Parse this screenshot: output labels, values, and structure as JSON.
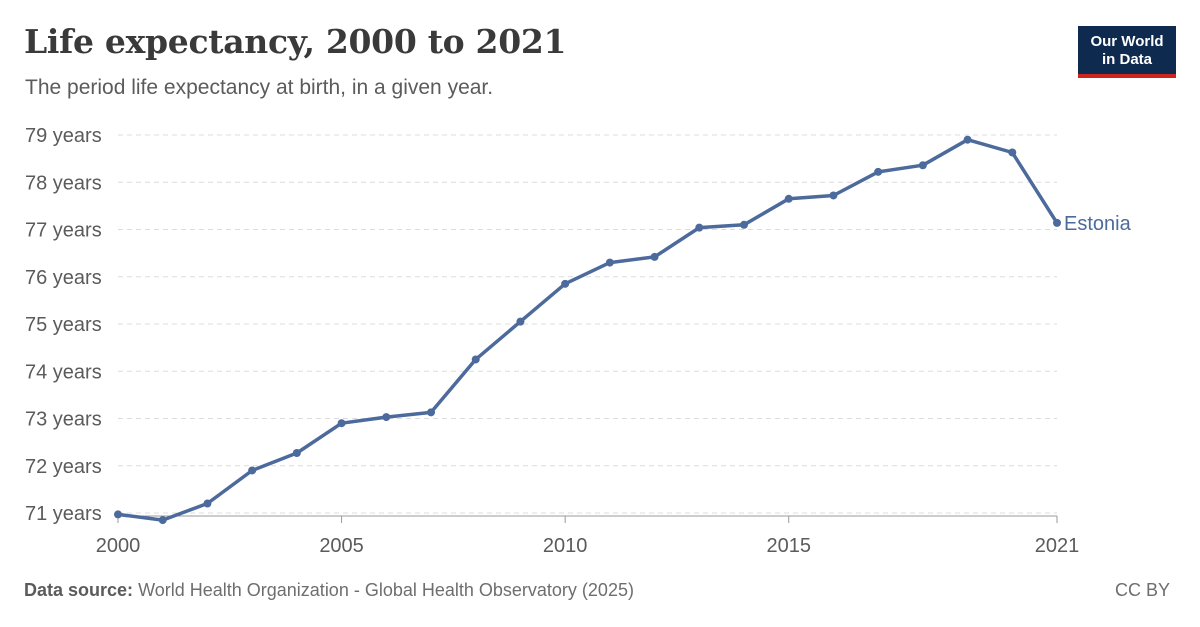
{
  "header": {
    "title": "Life expectancy, 2000 to 2021",
    "subtitle": "The period life expectancy at birth, in a given year."
  },
  "logo": {
    "line1": "Our World",
    "line2": "in Data"
  },
  "footer": {
    "source_label": "Data source:",
    "source_text": "World Health Organization - Global Health Observatory (2025)",
    "license": "CC BY"
  },
  "chart_data": {
    "type": "line",
    "title": "Life expectancy, 2000 to 2021",
    "subtitle": "The period life expectancy at birth, in a given year.",
    "xlabel": "",
    "ylabel": "",
    "xlim": [
      2000,
      2021
    ],
    "ylim": [
      71,
      79
    ],
    "grid": true,
    "legend": "inline-right",
    "y_ticks": [
      {
        "value": 71,
        "label": "71 years"
      },
      {
        "value": 72,
        "label": "72 years"
      },
      {
        "value": 73,
        "label": "73 years"
      },
      {
        "value": 74,
        "label": "74 years"
      },
      {
        "value": 75,
        "label": "75 years"
      },
      {
        "value": 76,
        "label": "76 years"
      },
      {
        "value": 77,
        "label": "77 years"
      },
      {
        "value": 78,
        "label": "78 years"
      },
      {
        "value": 79,
        "label": "79 years"
      }
    ],
    "x_ticks": [
      {
        "value": 2000,
        "label": "2000"
      },
      {
        "value": 2005,
        "label": "2005"
      },
      {
        "value": 2010,
        "label": "2010"
      },
      {
        "value": 2015,
        "label": "2015"
      },
      {
        "value": 2021,
        "label": "2021"
      }
    ],
    "series": [
      {
        "name": "Estonia",
        "color": "#4c6a9c",
        "x": [
          2000,
          2001,
          2002,
          2003,
          2004,
          2005,
          2006,
          2007,
          2008,
          2009,
          2010,
          2011,
          2012,
          2013,
          2014,
          2015,
          2016,
          2017,
          2018,
          2019,
          2020,
          2021
        ],
        "values": [
          70.97,
          70.85,
          71.2,
          71.9,
          72.27,
          72.9,
          73.03,
          73.13,
          74.25,
          75.05,
          75.85,
          76.3,
          76.42,
          77.04,
          77.1,
          77.65,
          77.72,
          78.22,
          78.36,
          78.9,
          78.63,
          77.14
        ]
      }
    ]
  }
}
